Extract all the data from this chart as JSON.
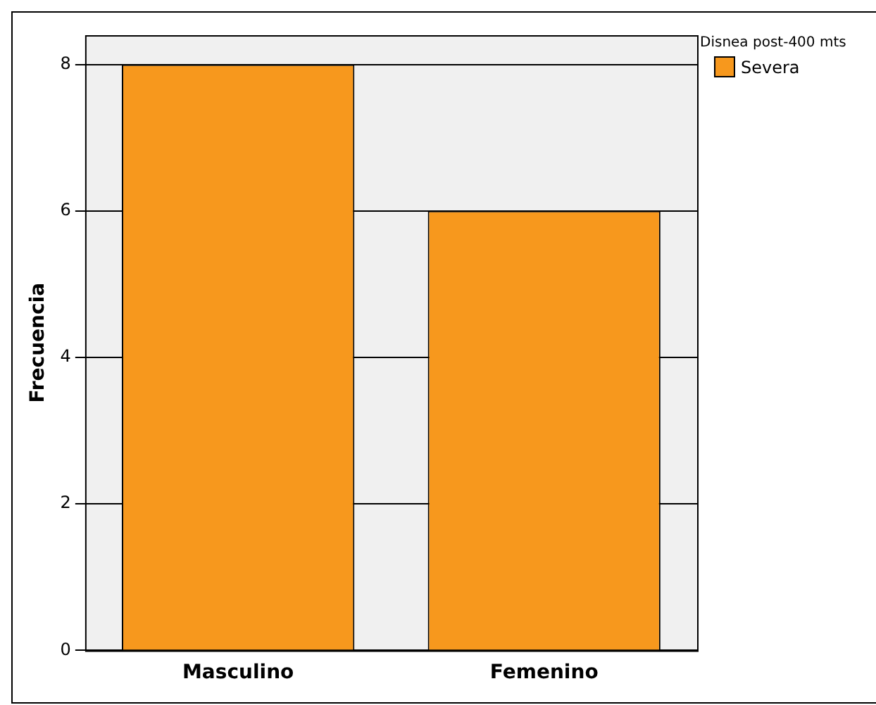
{
  "chart_data": {
    "type": "bar",
    "ylabel": "Frecuencia",
    "legend_title": "Disnea post-400 mts",
    "categories": [
      "Masculino",
      "Femenino"
    ],
    "series": [
      {
        "name": "Severa",
        "color": "#f7981d",
        "values": [
          8,
          6
        ]
      }
    ],
    "ylim": [
      0,
      8.4
    ],
    "yticks": [
      0,
      2,
      4,
      6,
      8
    ],
    "grid": "y",
    "legend": "top right"
  }
}
